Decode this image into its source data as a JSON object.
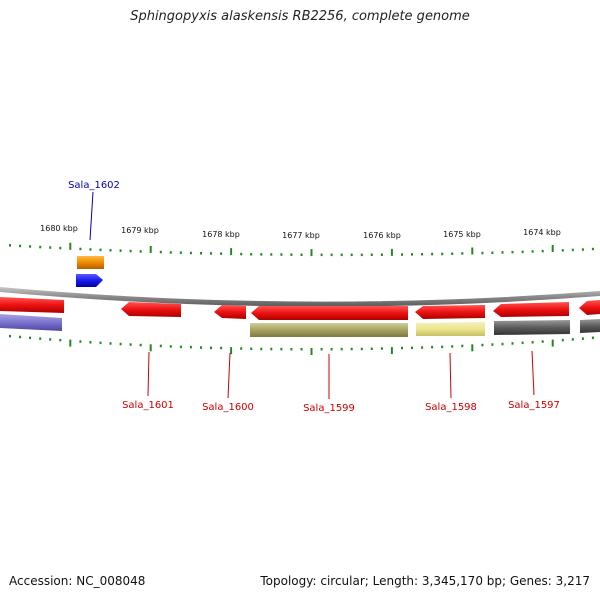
{
  "title": "Sphingopyxis alaskensis RB2256, complete genome",
  "footer": {
    "accession": "Accession: NC_008048",
    "topology": "Topology: circular; Length: 3,345,170 bp; Genes: 3,217"
  },
  "colors": {
    "gene_red": "#ee1111",
    "gene_blue": "#1a1aee",
    "gene_orange": "#ee8a00",
    "gene_olive": "#a6a260",
    "gene_pale_yellow": "#ece590",
    "gene_grey": "#555555",
    "gene_lavender": "#7a72cc",
    "backbone": "#888888",
    "tick": "#228822",
    "label_red": "#cc0000",
    "label_blue": "#0000bb"
  },
  "scale_labels": [
    {
      "text": "1680 kbp"
    },
    {
      "text": "1679 kbp"
    },
    {
      "text": "1678 kbp"
    },
    {
      "text": "1677 kbp"
    },
    {
      "text": "1676 kbp"
    },
    {
      "text": "1675 kbp"
    },
    {
      "text": "1674 kbp"
    }
  ],
  "gene_labels": [
    {
      "name": "Sala_1602",
      "color": "blue"
    },
    {
      "name": "Sala_1601",
      "color": "red"
    },
    {
      "name": "Sala_1600",
      "color": "red"
    },
    {
      "name": "Sala_1599",
      "color": "red"
    },
    {
      "name": "Sala_1598",
      "color": "red"
    },
    {
      "name": "Sala_1597",
      "color": "red"
    }
  ]
}
